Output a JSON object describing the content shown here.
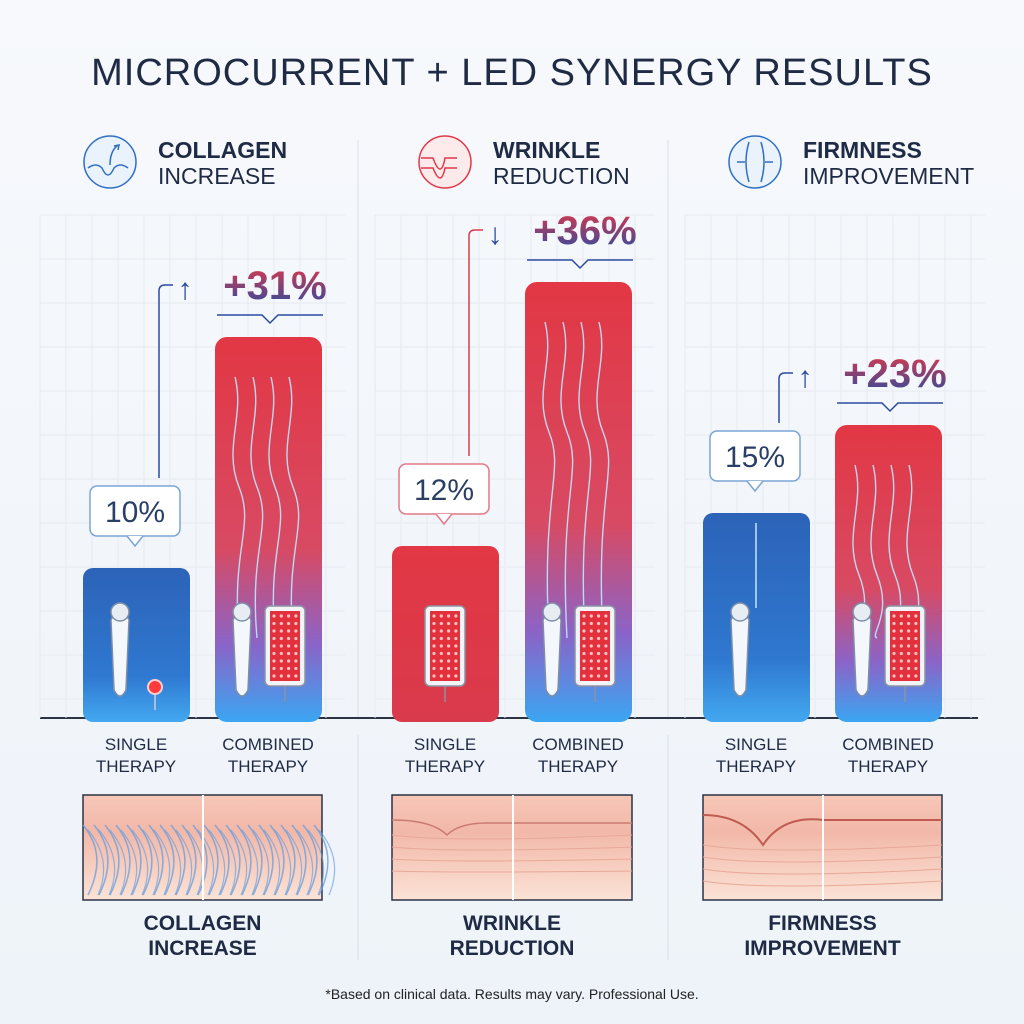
{
  "title": "MICROCURRENT + LED SYNERGY RESULTS",
  "footnote": "*Based on clinical data. Results may vary. Professional Use.",
  "colors": {
    "blue": "#2f6fc4",
    "red": "#e0384a",
    "navy": "#1f2b45",
    "glow": "#8fd3ff"
  },
  "chart_data": {
    "type": "bar",
    "categories": [
      "SINGLE THERAPY",
      "COMBINED THERAPY"
    ],
    "panels": [
      {
        "heading": [
          "COLLAGEN",
          "INCREASE"
        ],
        "icon": "collagen-up-icon",
        "icon_color": "#2f6fc4",
        "single": {
          "value": 10,
          "label": "10%",
          "color": "blue",
          "device": "microcurrent"
        },
        "combined": {
          "value": 31,
          "label": "+31%",
          "arrow": "up"
        },
        "single_label": [
          "SINGLE",
          "THERAPY"
        ],
        "combined_label": [
          "COMBINED",
          "THERAPY"
        ],
        "caption": [
          "COLLAGEN",
          "INCREASE"
        ]
      },
      {
        "heading": [
          "WRINKLE",
          "REDUCTION"
        ],
        "icon": "wrinkle-icon",
        "icon_color": "#e0384a",
        "single": {
          "value": 12,
          "label": "12%",
          "color": "red",
          "device": "led"
        },
        "combined": {
          "value": 36,
          "label": "+36%",
          "arrow": "down"
        },
        "single_label": [
          "SINGLE",
          "THERAPY"
        ],
        "combined_label": [
          "COMBINED",
          "THERAPY"
        ],
        "caption": [
          "WRINKLE",
          "REDUCTION"
        ]
      },
      {
        "heading": [
          "FIRMNESS",
          "IMPROVEMENT"
        ],
        "icon": "firmness-icon",
        "icon_color": "#2f6fc4",
        "single": {
          "value": 15,
          "label": "15%",
          "color": "blue",
          "device": "microcurrent"
        },
        "combined": {
          "value": 23,
          "label": "+23%",
          "arrow": "up"
        },
        "single_label": [
          "SINGLE",
          "THERAPY"
        ],
        "combined_label": [
          "COMBINED",
          "THERAPY"
        ],
        "caption": [
          "FIRMNESS",
          "IMPROVEMENT"
        ]
      }
    ],
    "grid": true
  }
}
